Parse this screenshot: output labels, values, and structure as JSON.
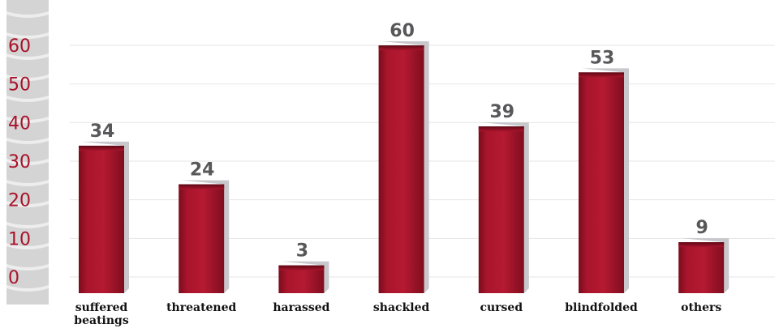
{
  "chart_data": {
    "type": "bar",
    "categories": [
      [
        "suffered",
        "beatings"
      ],
      [
        "threatened"
      ],
      [
        "harassed"
      ],
      [
        "shackled"
      ],
      [
        "cursed"
      ],
      [
        "blindfolded"
      ],
      [
        "others"
      ]
    ],
    "values": [
      34,
      24,
      3,
      60,
      39,
      53,
      9
    ],
    "yticks": [
      "0",
      "10",
      "20",
      "30",
      "40",
      "50",
      "60"
    ],
    "ylim": [
      0,
      60
    ],
    "grid": true,
    "legend": "none",
    "title": "",
    "xlabel": "",
    "ylabel": "",
    "colors": {
      "bar": "#a8152c",
      "bar_dark": "#6e0a18",
      "bar_shadow": "#c7c7cc",
      "tick_text": "#a8122a",
      "value_text": "#58585a",
      "grid": "#e6e6e6",
      "axis_strip": "#d4d4d4"
    }
  }
}
